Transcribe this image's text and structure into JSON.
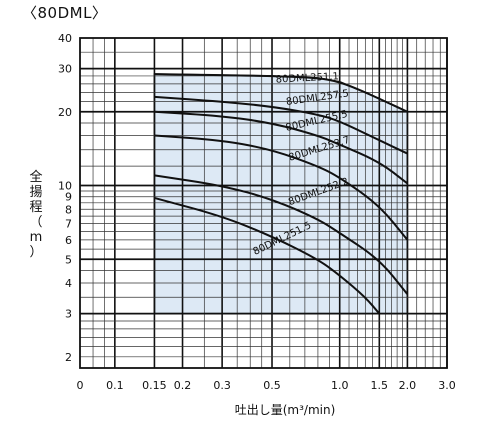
{
  "title": "〈80DML〉",
  "ylabel_chars": [
    "全",
    "揚",
    "程",
    "（",
    "m",
    "）"
  ],
  "chart_data": {
    "type": "line",
    "title": "〈80DML〉",
    "xlabel": "吐出し量(m³/min)",
    "ylabel": "全揚程（m）",
    "x_scale": "log",
    "y_scale": "log",
    "xlim": [
      0.07,
      3.0
    ],
    "ylim": [
      1.8,
      40
    ],
    "grid": true,
    "x_tick_labels": [
      {
        "v": 0.07,
        "t": "0"
      },
      {
        "v": 0.1,
        "t": "0.1"
      },
      {
        "v": 0.15,
        "t": "0.15"
      },
      {
        "v": 0.2,
        "t": "0.2"
      },
      {
        "v": 0.3,
        "t": "0.3"
      },
      {
        "v": 0.5,
        "t": "0.5"
      },
      {
        "v": 1.0,
        "t": "1.0"
      },
      {
        "v": 1.5,
        "t": "1.5"
      },
      {
        "v": 2.0,
        "t": "2.0"
      },
      {
        "v": 3.0,
        "t": "3.0"
      }
    ],
    "y_tick_labels": [
      2,
      3,
      4,
      5,
      6,
      7,
      8,
      9,
      10,
      20,
      30,
      40
    ],
    "x_grid_minor": [
      0.08,
      0.09,
      0.1,
      0.15,
      0.2,
      0.25,
      0.3,
      0.35,
      0.4,
      0.45,
      0.5,
      0.6,
      0.7,
      0.8,
      0.9,
      1.0,
      1.1,
      1.2,
      1.3,
      1.4,
      1.5,
      1.6,
      1.7,
      1.8,
      1.9,
      2.0,
      2.2,
      2.4,
      2.6,
      2.8,
      3.0
    ],
    "x_grid_major": [
      0.1,
      0.15,
      0.2,
      0.3,
      0.5,
      1.0,
      1.5,
      2.0,
      3.0
    ],
    "y_grid_minor": [
      2,
      2.2,
      2.4,
      2.6,
      2.8,
      3,
      3.5,
      4,
      4.5,
      5,
      5.5,
      6,
      6.5,
      7,
      7.5,
      8,
      8.5,
      9,
      9.5,
      10,
      12,
      14,
      16,
      18,
      20,
      22,
      24,
      26,
      28,
      30,
      35,
      40
    ],
    "y_grid_major": [
      3,
      5,
      10,
      20,
      30
    ],
    "region": {
      "x_min": 0.15,
      "x_max": 2.0,
      "y_min": 3,
      "top_boundary": [
        [
          0.15,
          28.5
        ],
        [
          0.5,
          28.0
        ],
        [
          0.8,
          27.5
        ],
        [
          1.0,
          26.5
        ],
        [
          1.3,
          24.0
        ],
        [
          1.6,
          22.0
        ],
        [
          2.0,
          20.0
        ]
      ]
    },
    "series": [
      {
        "name": "80DML251.1",
        "label_at": [
          0.52,
          26.3
        ],
        "label_angle": -3,
        "points": [
          [
            0.15,
            28.5
          ],
          [
            0.5,
            28.0
          ],
          [
            0.8,
            27.5
          ],
          [
            1.0,
            26.5
          ],
          [
            1.3,
            24.0
          ],
          [
            1.6,
            22.0
          ],
          [
            2.0,
            20.0
          ]
        ]
      },
      {
        "name": "80DML257.5",
        "label_at": [
          0.58,
          21.3
        ],
        "label_angle": -8,
        "points": [
          [
            0.15,
            23.0
          ],
          [
            0.3,
            22.0
          ],
          [
            0.5,
            21.0
          ],
          [
            0.8,
            19.5
          ],
          [
            1.0,
            18.3
          ],
          [
            1.5,
            15.3
          ],
          [
            2.0,
            13.5
          ]
        ]
      },
      {
        "name": "80DML255.5",
        "label_at": [
          0.58,
          16.7
        ],
        "label_angle": -13,
        "points": [
          [
            0.15,
            20.0
          ],
          [
            0.3,
            19.2
          ],
          [
            0.5,
            18.0
          ],
          [
            0.8,
            16.0
          ],
          [
            1.0,
            14.7
          ],
          [
            1.5,
            12.5
          ],
          [
            2.0,
            10.2
          ]
        ]
      },
      {
        "name": "80DML253.7",
        "label_at": [
          0.6,
          12.6
        ],
        "label_angle": -17,
        "points": [
          [
            0.15,
            16.0
          ],
          [
            0.3,
            15.3
          ],
          [
            0.5,
            14.0
          ],
          [
            0.8,
            12.0
          ],
          [
            1.0,
            10.8
          ],
          [
            1.5,
            8.3
          ],
          [
            2.0,
            6.0
          ]
        ]
      },
      {
        "name": "80DML252.2",
        "label_at": [
          0.6,
          8.3
        ],
        "label_angle": -20,
        "points": [
          [
            0.15,
            11.0
          ],
          [
            0.3,
            10.0
          ],
          [
            0.5,
            8.8
          ],
          [
            0.8,
            7.3
          ],
          [
            1.0,
            6.4
          ],
          [
            1.5,
            5.0
          ],
          [
            2.0,
            3.6
          ]
        ]
      },
      {
        "name": "80DML251.5",
        "label_at": [
          0.42,
          5.2
        ],
        "label_angle": -26,
        "points": [
          [
            0.15,
            8.9
          ],
          [
            0.3,
            7.5
          ],
          [
            0.5,
            6.2
          ],
          [
            0.8,
            5.0
          ],
          [
            1.0,
            4.3
          ],
          [
            1.3,
            3.5
          ],
          [
            1.5,
            3.0
          ]
        ]
      }
    ]
  }
}
